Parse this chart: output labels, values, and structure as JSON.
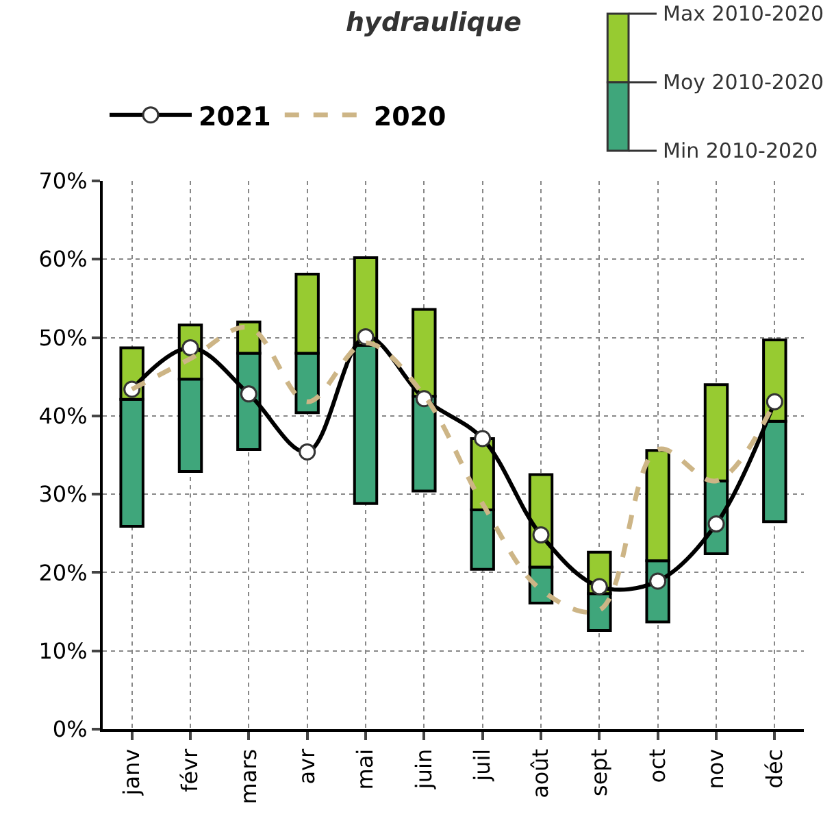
{
  "chart_data": {
    "type": "bar",
    "title": "hydraulique",
    "categories": [
      "janv",
      "févr",
      "mars",
      "avr",
      "mai",
      "juin",
      "juil",
      "août",
      "sept",
      "oct",
      "nov",
      "déc"
    ],
    "series": [
      {
        "color": "#3fa67b",
        "base": [
          25.9,
          32.9,
          35.7,
          40.4,
          28.8,
          30.4,
          20.4,
          16.1,
          12.6,
          13.7,
          22.4,
          26.5
        ],
        "values": [
          16.2,
          11.8,
          12.3,
          7.6,
          20.2,
          12.1,
          7.6,
          4.6,
          4.7,
          7.8,
          9.3,
          12.8
        ]
      },
      {
        "color": "#97cb31",
        "base": [
          42.1,
          44.7,
          48.0,
          48.0,
          49.0,
          42.5,
          28.0,
          20.7,
          17.3,
          21.5,
          31.7,
          39.3
        ],
        "values": [
          6.6,
          6.9,
          4.0,
          10.1,
          11.2,
          11.1,
          9.1,
          11.8,
          5.3,
          14.1,
          12.3,
          10.4
        ]
      },
      {
        "name": "2021",
        "type": "line",
        "color": "#000000",
        "marker": "circle",
        "line_style": "solid",
        "values": [
          43.4,
          48.7,
          42.8,
          35.4,
          50.1,
          42.2,
          37.1,
          24.8,
          18.2,
          18.9,
          26.2,
          41.8
        ]
      },
      {
        "name": "2020",
        "type": "line",
        "color": "#cdb586",
        "marker": "none",
        "line_style": "dashed",
        "values": [
          43.4,
          47.3,
          51.3,
          41.8,
          49.3,
          42.6,
          28.8,
          17.8,
          15.2,
          35.7,
          31.7,
          41.8
        ]
      }
    ],
    "annotations": [
      "Max 2010-2020",
      "Moy 2010-2020",
      "Min 2010-2020"
    ],
    "ylim": [
      0,
      70
    ],
    "yticks": [
      {
        "value": 0,
        "label": "0%"
      },
      {
        "value": 10,
        "label": "10%"
      },
      {
        "value": 20,
        "label": "20%"
      },
      {
        "value": 30,
        "label": "30%"
      },
      {
        "value": 40,
        "label": "40%"
      },
      {
        "value": 50,
        "label": "50%"
      },
      {
        "value": 60,
        "label": "60%"
      },
      {
        "value": 70,
        "label": "70%"
      }
    ],
    "grid": true,
    "legend": "top left"
  }
}
